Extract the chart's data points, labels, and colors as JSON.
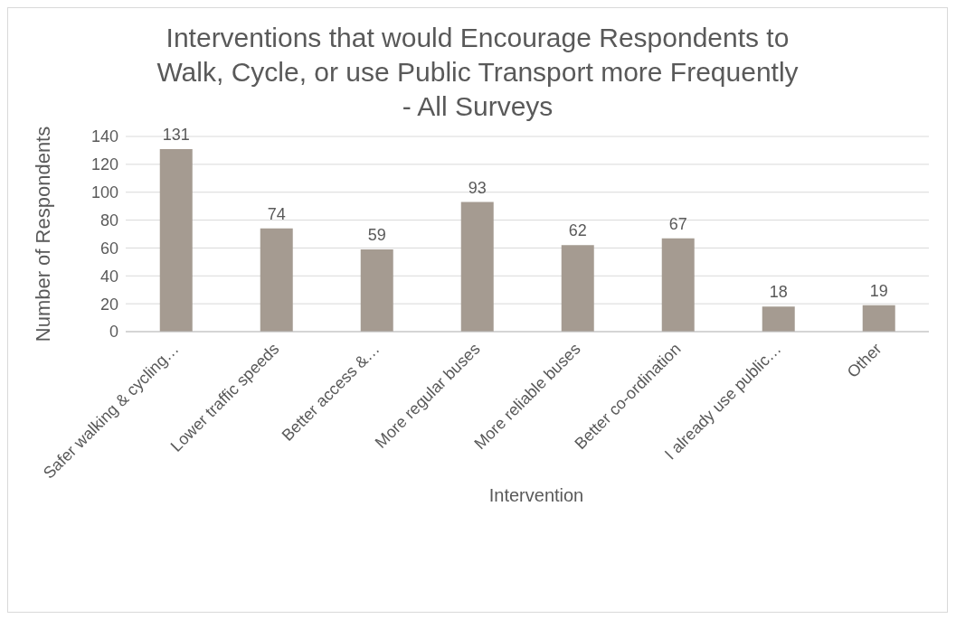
{
  "chart_data": {
    "type": "bar",
    "title": "Interventions that would Encourage Respondents to Walk, Cycle, or use Public Transport more Frequently - All Surveys",
    "xlabel": "Intervention",
    "ylabel": "Number of Respondents",
    "categories": [
      "Safer walking & cycling…",
      "Lower traffic speeds",
      "Better access &…",
      "More regular buses",
      "More reliable buses",
      "Better co-ordination",
      "I already use public…",
      "Other"
    ],
    "values": [
      131,
      74,
      59,
      93,
      62,
      67,
      18,
      19
    ],
    "color": "#a59b91",
    "ylim": [
      0,
      140
    ],
    "yticks": [
      0,
      20,
      40,
      60,
      80,
      100,
      120,
      140
    ],
    "grid": "y",
    "data_labels": true,
    "legend": false
  }
}
